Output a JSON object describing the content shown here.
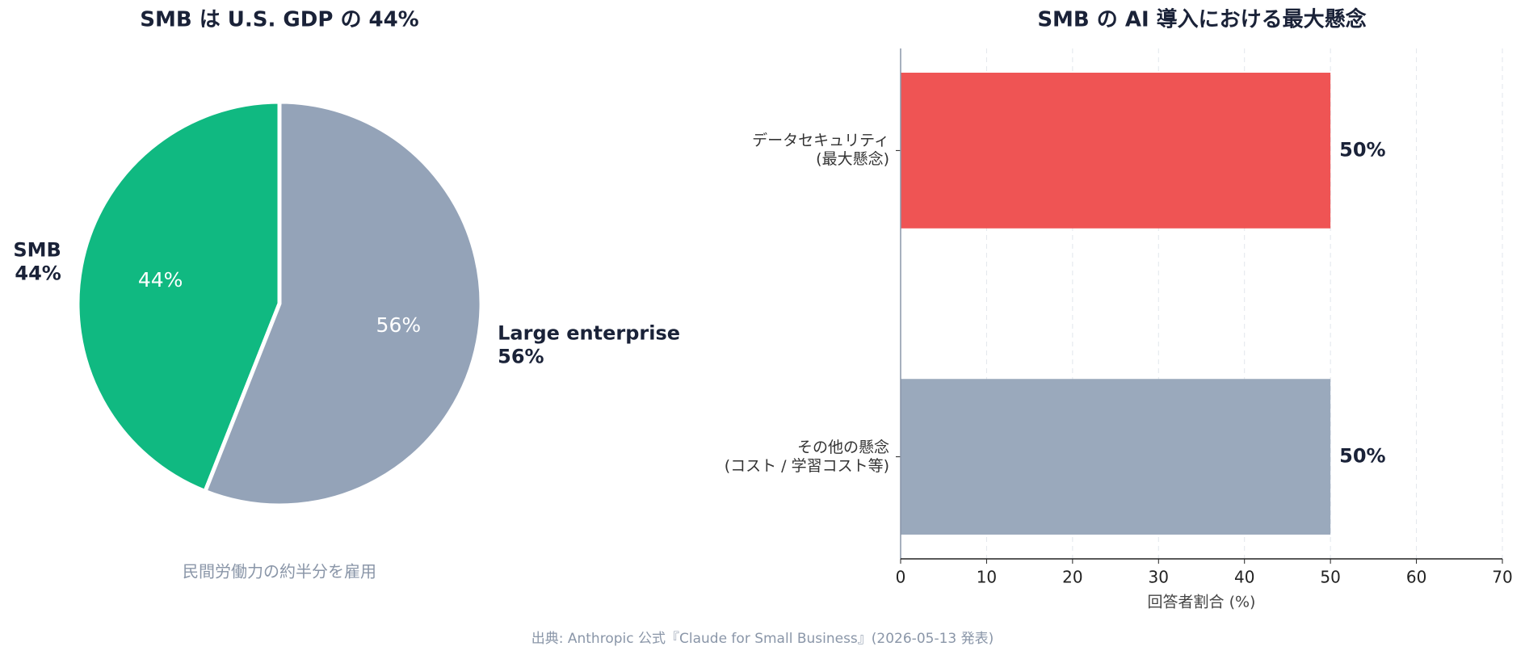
{
  "chart_data": [
    {
      "type": "pie",
      "title": "SMB は U.S. GDP の 44%",
      "categories": [
        "SMB",
        "Large enterprise"
      ],
      "values": [
        44,
        56
      ],
      "value_labels": [
        "44%",
        "56%"
      ],
      "colors": [
        "#10b981",
        "#94a3b8"
      ],
      "annotation": "民間労働力の約半分を雇用"
    },
    {
      "type": "barh",
      "title": "SMB の AI 導入における最大懸念",
      "categories": [
        "データセキュリティ\n(最大懸念)",
        "その他の懸念\n(コスト / 学習コスト等)"
      ],
      "values": [
        50,
        50
      ],
      "value_labels": [
        "50%",
        "50%"
      ],
      "colors": [
        "#ef5454",
        "#9aa9bc"
      ],
      "xlim": [
        0,
        70
      ],
      "xticks": [
        0,
        10,
        20,
        30,
        40,
        50,
        60,
        70
      ],
      "xlabel": "回答者割合 (%)",
      "grid": true
    }
  ],
  "footer": {
    "source": "出典: Anthropic 公式『Claude for Small Business』(2026-05-13 発表)"
  }
}
